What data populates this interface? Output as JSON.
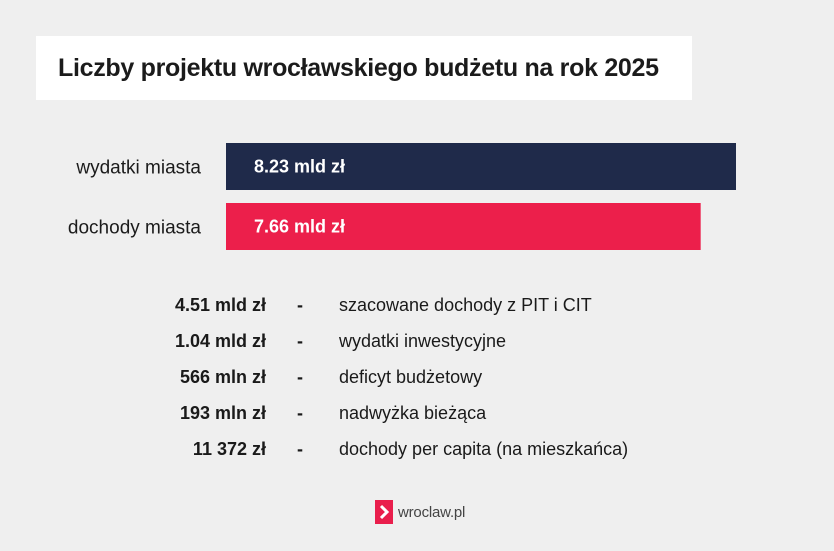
{
  "title": "Liczby projektu wrocławskiego budżetu na rok 2025",
  "chart_data": {
    "type": "bar",
    "orientation": "horizontal",
    "unit": "mld zł",
    "categories": [
      "wydatki miasta",
      "dochody miasta"
    ],
    "values": [
      8.23,
      7.66
    ],
    "data_labels": [
      "8.23 mld zł",
      "7.66 mld zł"
    ],
    "colors": [
      "#1f2a4a",
      "#ec1f4b"
    ],
    "xlim": [
      0,
      8.23
    ],
    "title": "",
    "xlabel": "",
    "ylabel": "",
    "grid": false
  },
  "stats": [
    {
      "value": "4.51 mld zł",
      "dash": "-",
      "description": "szacowane dochody z PIT i CIT"
    },
    {
      "value": "1.04 mld zł",
      "dash": "-",
      "description": "wydatki inwestycyjne"
    },
    {
      "value": "566 mln zł",
      "dash": "-",
      "description": "deficyt budżetowy"
    },
    {
      "value": "193 mln zł",
      "dash": "-",
      "description": "nadwyżka bieżąca"
    },
    {
      "value": "11 372 zł",
      "dash": "-",
      "description": "dochody per capita (na mieszkańca)"
    }
  ],
  "logo": {
    "text": "wroclaw.pl",
    "icon": "chevron-right-icon",
    "color": "#e91e4c"
  }
}
